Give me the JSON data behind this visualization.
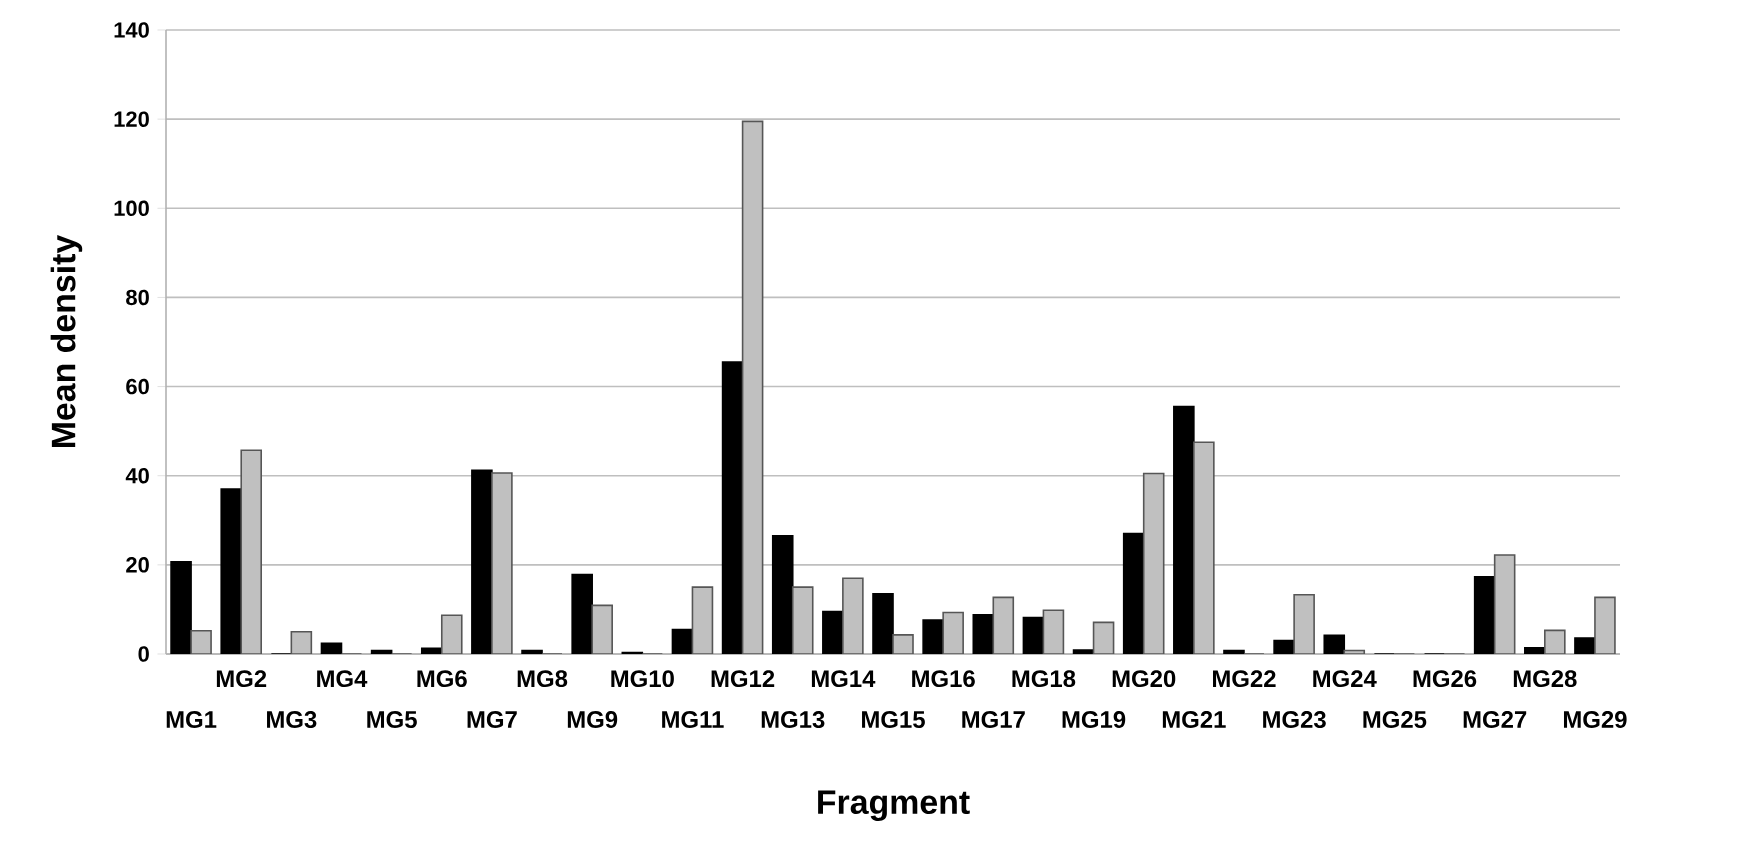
{
  "chart_data": {
    "type": "bar",
    "xlabel": "Fragment",
    "ylabel": "Mean density",
    "categories": [
      "MG1",
      "MG2",
      "MG3",
      "MG4",
      "MG5",
      "MG6",
      "MG7",
      "MG8",
      "MG9",
      "MG10",
      "MG11",
      "MG12",
      "MG13",
      "MG14",
      "MG15",
      "MG16",
      "MG17",
      "MG18",
      "MG19",
      "MG20",
      "MG21",
      "MG22",
      "MG23",
      "MG24",
      "MG25",
      "MG26",
      "MG27",
      "MG28",
      "MG29"
    ],
    "series": [
      {
        "color": "#000000",
        "values": [
          20.7,
          37,
          0,
          2.4,
          0.8,
          1.3,
          41.2,
          0.8,
          17.8,
          0.3,
          5.5,
          65.5,
          26.5,
          9.5,
          13.5,
          7.6,
          8.8,
          8.2,
          0.9,
          27,
          55.5,
          0.8,
          3,
          4.2,
          0,
          0,
          17.3,
          1.4,
          3.6
        ]
      },
      {
        "color": "#c0c0c0",
        "values": [
          5.2,
          45.7,
          5,
          0,
          0,
          8.7,
          40.6,
          0,
          10.9,
          0,
          15,
          119.5,
          15,
          17,
          4.3,
          9.3,
          12.7,
          9.8,
          7.1,
          40.5,
          47.5,
          0,
          13.3,
          0.8,
          0,
          0,
          22.2,
          5.3,
          12.7
        ]
      }
    ],
    "ylim": [
      0,
      140
    ],
    "yticks": [
      0,
      20,
      40,
      60,
      80,
      100,
      120,
      140
    ],
    "grid": "y"
  }
}
